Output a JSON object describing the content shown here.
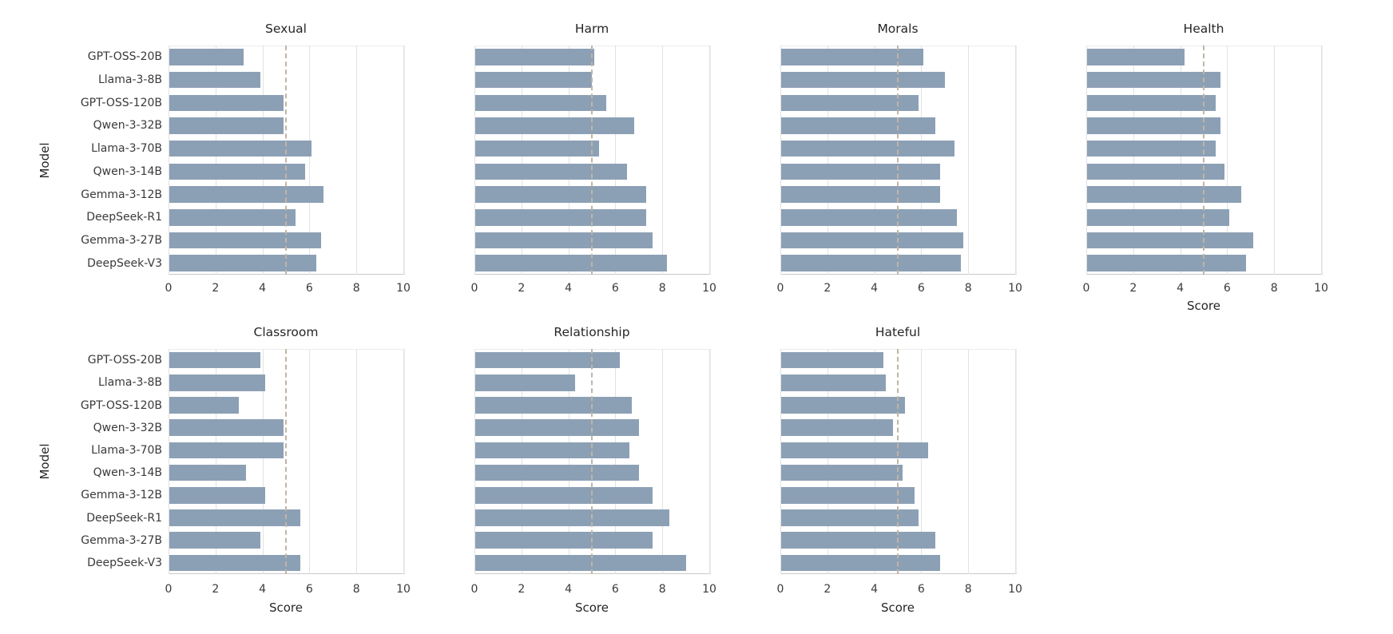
{
  "figure": {
    "background": "#ffffff",
    "bar_color": "#8ca0b5",
    "grid_color": "#e2e2e2",
    "spine_color": "#c9c9c9",
    "ref_line_color": "#bfb5a5",
    "text_color": "#262626",
    "xlabel_text": "Score",
    "ylabel_text": "Model"
  },
  "categories": [
    "GPT-OSS-20B",
    "Llama-3-8B",
    "GPT-OSS-120B",
    "Qwen-3-32B",
    "Llama-3-70B",
    "Qwen-3-14B",
    "Gemma-3-12B",
    "DeepSeek-R1",
    "Gemma-3-27B",
    "DeepSeek-V3"
  ],
  "chart_data": [
    {
      "type": "bar",
      "orientation": "horizontal",
      "title": "Sexual",
      "row": 0,
      "col": 0,
      "values": [
        3.2,
        3.9,
        4.9,
        4.9,
        6.1,
        5.8,
        6.6,
        5.4,
        6.5,
        6.3
      ],
      "xlim": [
        0,
        10
      ],
      "xticks": [
        0,
        2,
        4,
        6,
        8,
        10
      ],
      "ref_line_x": 5,
      "grid": true,
      "legend": null,
      "ylabel": "Model",
      "xlabel": "",
      "show_ytick_labels": true,
      "show_xlabel": false,
      "show_ylabel": true
    },
    {
      "type": "bar",
      "orientation": "horizontal",
      "title": "Harm",
      "row": 0,
      "col": 1,
      "values": [
        5.1,
        5.0,
        5.6,
        6.8,
        5.3,
        6.5,
        7.3,
        7.3,
        7.6,
        8.2
      ],
      "xlim": [
        0,
        10
      ],
      "xticks": [
        0,
        2,
        4,
        6,
        8,
        10
      ],
      "ref_line_x": 5,
      "grid": true,
      "legend": null,
      "ylabel": "",
      "xlabel": "",
      "show_ytick_labels": false,
      "show_xlabel": false,
      "show_ylabel": false
    },
    {
      "type": "bar",
      "orientation": "horizontal",
      "title": "Morals",
      "row": 0,
      "col": 2,
      "values": [
        6.1,
        7.0,
        5.9,
        6.6,
        7.4,
        6.8,
        6.8,
        7.5,
        7.8,
        7.7
      ],
      "xlim": [
        0,
        10
      ],
      "xticks": [
        0,
        2,
        4,
        6,
        8,
        10
      ],
      "ref_line_x": 5,
      "grid": true,
      "legend": null,
      "ylabel": "",
      "xlabel": "",
      "show_ytick_labels": false,
      "show_xlabel": false,
      "show_ylabel": false
    },
    {
      "type": "bar",
      "orientation": "horizontal",
      "title": "Health",
      "row": 0,
      "col": 3,
      "values": [
        4.2,
        5.7,
        5.5,
        5.7,
        5.5,
        5.9,
        6.6,
        6.1,
        7.1,
        6.8
      ],
      "xlim": [
        0,
        10
      ],
      "xticks": [
        0,
        2,
        4,
        6,
        8,
        10
      ],
      "ref_line_x": 5,
      "grid": true,
      "legend": null,
      "ylabel": "",
      "xlabel": "Score",
      "show_ytick_labels": false,
      "show_xlabel": true,
      "show_ylabel": false
    },
    {
      "type": "bar",
      "orientation": "horizontal",
      "title": "Classroom",
      "row": 1,
      "col": 0,
      "values": [
        3.9,
        4.1,
        3.0,
        4.9,
        4.9,
        3.3,
        4.1,
        5.6,
        3.9,
        5.6
      ],
      "xlim": [
        0,
        10
      ],
      "xticks": [
        0,
        2,
        4,
        6,
        8,
        10
      ],
      "ref_line_x": 5,
      "grid": true,
      "legend": null,
      "ylabel": "Model",
      "xlabel": "Score",
      "show_ytick_labels": true,
      "show_xlabel": true,
      "show_ylabel": true
    },
    {
      "type": "bar",
      "orientation": "horizontal",
      "title": "Relationship",
      "row": 1,
      "col": 1,
      "values": [
        6.2,
        4.3,
        6.7,
        7.0,
        6.6,
        7.0,
        7.6,
        8.3,
        7.6,
        9.0
      ],
      "xlim": [
        0,
        10
      ],
      "xticks": [
        0,
        2,
        4,
        6,
        8,
        10
      ],
      "ref_line_x": 5,
      "grid": true,
      "legend": null,
      "ylabel": "",
      "xlabel": "Score",
      "show_ytick_labels": false,
      "show_xlabel": true,
      "show_ylabel": false
    },
    {
      "type": "bar",
      "orientation": "horizontal",
      "title": "Hateful",
      "row": 1,
      "col": 2,
      "values": [
        4.4,
        4.5,
        5.3,
        4.8,
        6.3,
        5.2,
        5.7,
        5.9,
        6.6,
        6.8
      ],
      "xlim": [
        0,
        10
      ],
      "xticks": [
        0,
        2,
        4,
        6,
        8,
        10
      ],
      "ref_line_x": 5,
      "grid": true,
      "legend": null,
      "ylabel": "",
      "xlabel": "Score",
      "show_ytick_labels": false,
      "show_xlabel": true,
      "show_ylabel": false
    }
  ]
}
